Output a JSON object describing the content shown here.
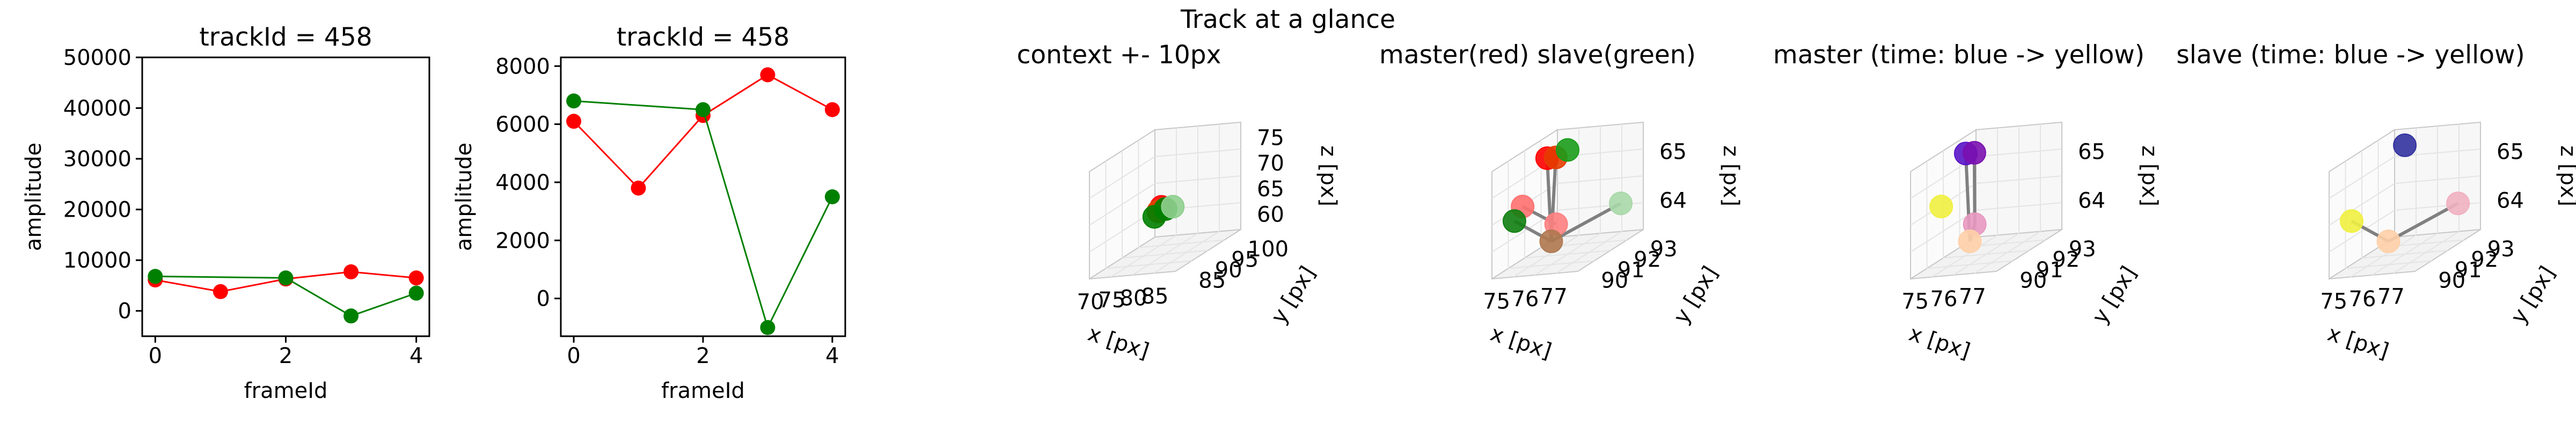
{
  "suptitle": "Track at a glance",
  "chart_data": [
    {
      "type": "line",
      "title": "trackId = 458",
      "xlabel": "frameId",
      "ylabel": "amplitude",
      "xlim": [
        -0.2,
        4.2
      ],
      "ylim": [
        -5000,
        50000
      ],
      "xticks": [
        0,
        2,
        4
      ],
      "yticks": [
        0,
        10000,
        20000,
        30000,
        40000,
        50000
      ],
      "grid": false,
      "series": [
        {
          "color": "#ff0000",
          "x": [
            0,
            1,
            2,
            3,
            4
          ],
          "y": [
            6100,
            3800,
            6300,
            7700,
            6500
          ]
        },
        {
          "color": "#008000",
          "x": [
            0,
            2,
            3,
            4
          ],
          "y": [
            6800,
            6500,
            -1000,
            3500
          ]
        }
      ]
    },
    {
      "type": "line",
      "title": "trackId = 458",
      "xlabel": "frameId",
      "ylabel": "amplitude",
      "xlim": [
        -0.2,
        4.2
      ],
      "ylim": [
        -1300,
        8300
      ],
      "xticks": [
        0,
        2,
        4
      ],
      "yticks": [
        0,
        2000,
        4000,
        6000,
        8000
      ],
      "grid": false,
      "series": [
        {
          "color": "#ff0000",
          "x": [
            0,
            1,
            2,
            3,
            4
          ],
          "y": [
            6100,
            3800,
            6300,
            7700,
            6500
          ]
        },
        {
          "color": "#008000",
          "x": [
            0,
            2,
            3,
            4
          ],
          "y": [
            6800,
            6500,
            -1000,
            3500
          ]
        }
      ]
    },
    {
      "type": "scatter3d",
      "title": "context +- 10px",
      "xlabel": "x [px]",
      "ylabel": "y [px]",
      "zlabel": "z [px]",
      "xticks": [
        "70",
        "75",
        "80",
        "85"
      ],
      "yticks": [
        "85",
        "90",
        "95",
        "100"
      ],
      "zticks": [
        "60",
        "65",
        "70",
        "75"
      ],
      "xlim": [
        66,
        87
      ],
      "ylim": [
        82,
        103
      ],
      "zlim": [
        55,
        76
      ],
      "points": [
        {
          "x": 76,
          "y": 92,
          "z": 64.5,
          "color": "#ff0000"
        },
        {
          "x": 76,
          "y": 91,
          "z": 64,
          "color": "#dd4400"
        },
        {
          "x": 77,
          "y": 92,
          "z": 64,
          "color": "#008000"
        },
        {
          "x": 75,
          "y": 91,
          "z": 63,
          "color": "#008000"
        },
        {
          "x": 78,
          "y": 93,
          "z": 64,
          "color": "#8fcf8f"
        }
      ]
    },
    {
      "type": "scatter3d",
      "title": "master(red) slave(green)",
      "xlabel": "x [px]",
      "ylabel": "y [px]",
      "zlabel": "z [px]",
      "xticks": [
        "75",
        "76",
        "77"
      ],
      "yticks": [
        "90",
        "91",
        "92",
        "93"
      ],
      "zticks": [
        "64",
        "65"
      ],
      "xlim": [
        74.5,
        77.5
      ],
      "ylim": [
        89.5,
        93.5
      ],
      "zlim": [
        63.5,
        65.8
      ],
      "points": [
        {
          "x": 75,
          "y": 92,
          "z": 65.5,
          "color": "#ff0000"
        },
        {
          "x": 75.3,
          "y": 92,
          "z": 65.5,
          "color": "#e63c00"
        },
        {
          "x": 75.6,
          "y": 92.2,
          "z": 65.6,
          "color": "#1a9c1a"
        },
        {
          "x": 75,
          "y": 90.5,
          "z": 64.8,
          "color": "#ff7070"
        },
        {
          "x": 75,
          "y": 90,
          "z": 64.6,
          "color": "#108010"
        },
        {
          "x": 76,
          "y": 90.8,
          "z": 64.3,
          "color": "#ff8080"
        },
        {
          "x": 76,
          "y": 90.5,
          "z": 64.0,
          "color": "#b07850"
        },
        {
          "x": 77,
          "y": 93,
          "z": 64.2,
          "color": "#a8d8a8"
        }
      ],
      "lines": [
        [
          0,
          6
        ],
        [
          1,
          6
        ],
        [
          3,
          5
        ],
        [
          4,
          6
        ],
        [
          6,
          7
        ]
      ]
    },
    {
      "type": "scatter3d",
      "title": "master (time: blue -> yellow)",
      "xlabel": "x [px]",
      "ylabel": "y [px]",
      "zlabel": "z [px]",
      "xticks": [
        "75",
        "76",
        "77"
      ],
      "yticks": [
        "90",
        "91",
        "92",
        "93"
      ],
      "zticks": [
        "64",
        "65"
      ],
      "xlim": [
        74.5,
        77.5
      ],
      "ylim": [
        89.5,
        93.5
      ],
      "zlim": [
        63.5,
        65.8
      ],
      "points": [
        {
          "x": 75,
          "y": 92,
          "z": 65.6,
          "color": "#5a14c8"
        },
        {
          "x": 75.3,
          "y": 92,
          "z": 65.6,
          "color": "#7a10b0"
        },
        {
          "x": 75,
          "y": 90.5,
          "z": 64.8,
          "color": "#f0f040"
        },
        {
          "x": 76,
          "y": 90.8,
          "z": 64.3,
          "color": "#e898c0"
        },
        {
          "x": 76,
          "y": 90.5,
          "z": 64.0,
          "color": "#ffd0a8"
        }
      ],
      "lines": [
        [
          0,
          4
        ],
        [
          1,
          3
        ],
        [
          3,
          4
        ]
      ]
    },
    {
      "type": "scatter3d",
      "title": "slave (time: blue -> yellow)",
      "xlabel": "x [px]",
      "ylabel": "y [px]",
      "zlabel": "z [px]",
      "xticks": [
        "75",
        "76",
        "77"
      ],
      "yticks": [
        "90",
        "91",
        "92",
        "93"
      ],
      "zticks": [
        "64",
        "65"
      ],
      "xlim": [
        74.5,
        77.5
      ],
      "ylim": [
        89.5,
        93.5
      ],
      "zlim": [
        63.5,
        65.8
      ],
      "points": [
        {
          "x": 75.6,
          "y": 92.2,
          "z": 65.7,
          "color": "#3232a0"
        },
        {
          "x": 75,
          "y": 90,
          "z": 64.6,
          "color": "#f0f040"
        },
        {
          "x": 76,
          "y": 90.5,
          "z": 64.0,
          "color": "#ffd0a8"
        },
        {
          "x": 77,
          "y": 93,
          "z": 64.2,
          "color": "#f0b0c0"
        }
      ],
      "lines": [
        [
          1,
          2
        ],
        [
          2,
          3
        ]
      ]
    }
  ]
}
